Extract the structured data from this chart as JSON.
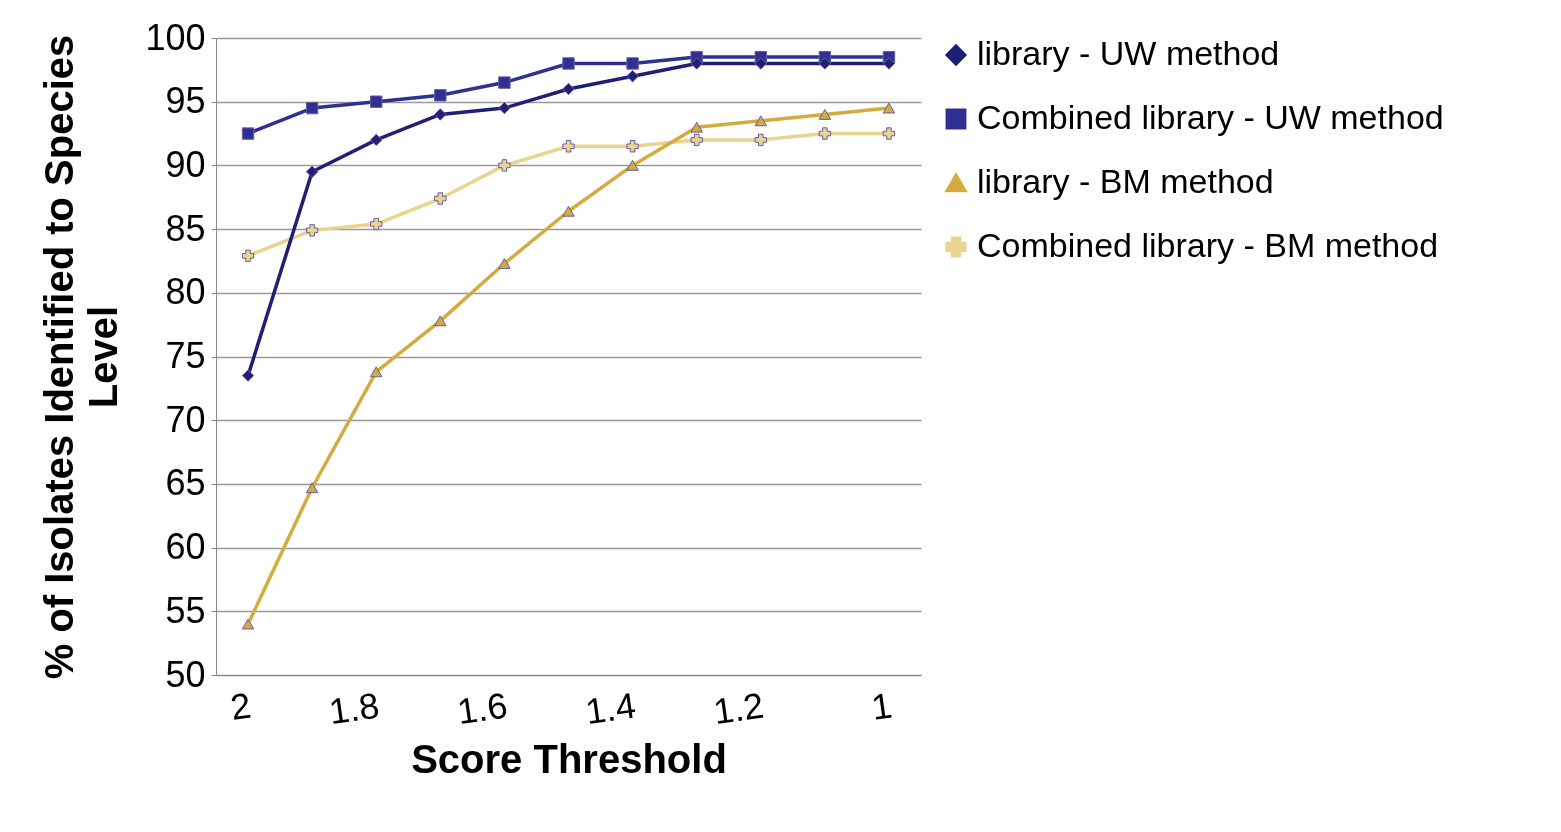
{
  "chart_data": {
    "type": "line",
    "xlabel": "Score Threshold",
    "ylabel": "% of Isolates Identified to Species Level",
    "categories": [
      "2",
      null,
      "1.8",
      null,
      "1.6",
      null,
      "1.4",
      null,
      "1.2",
      null,
      "1"
    ],
    "series": [
      {
        "name": "library - UW method",
        "color": "#1f1f75",
        "marker": "diamond",
        "values": [
          73.5,
          89.5,
          92,
          94,
          94.5,
          96,
          97,
          98,
          98,
          98,
          98
        ]
      },
      {
        "name": "Combined library - UW method",
        "color": "#2e3192",
        "marker": "square",
        "values": [
          92.5,
          94.5,
          95,
          95.5,
          96.5,
          98,
          98,
          98.5,
          98.5,
          98.5,
          98.5
        ]
      },
      {
        "name": "library - BM method",
        "color": "#d4ab3e",
        "marker": "triangle",
        "values": [
          54,
          64.7,
          73.8,
          77.8,
          82.3,
          86.4,
          90,
          93,
          93.5,
          94,
          94.5
        ]
      },
      {
        "name": "Combined library - BM method",
        "color": "#e9d48e",
        "marker": "cross",
        "values": [
          82.9,
          84.9,
          85.4,
          87.4,
          90,
          91.5,
          91.5,
          92,
          92,
          92.5,
          92.5
        ]
      }
    ],
    "ylim": [
      50,
      100
    ],
    "yticks": [
      50,
      55,
      60,
      65,
      70,
      75,
      80,
      85,
      90,
      95,
      100
    ],
    "grid": "y",
    "legend": "right"
  }
}
